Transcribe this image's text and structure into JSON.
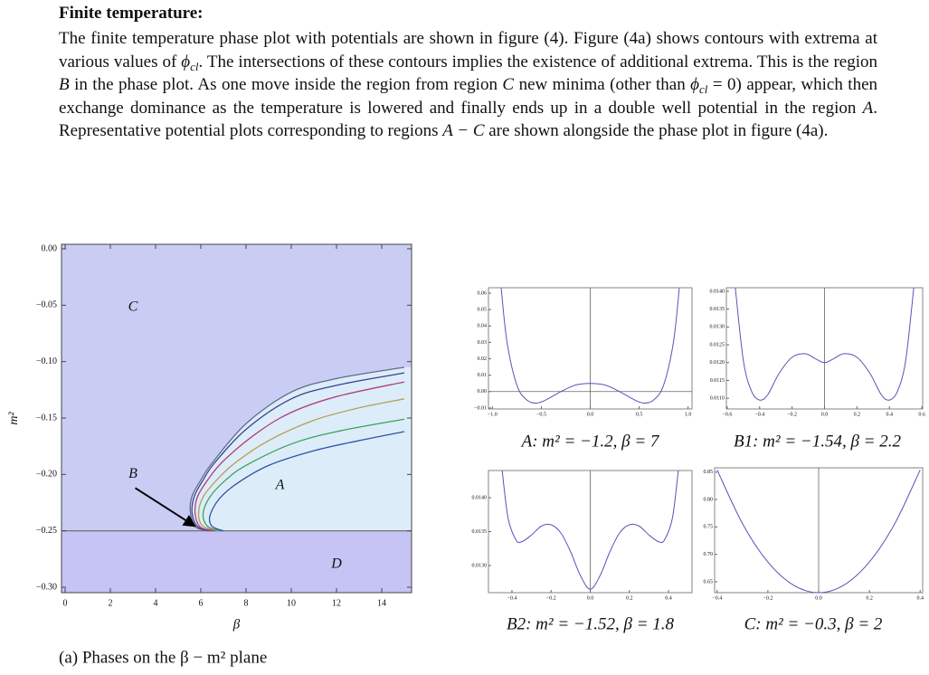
{
  "heading": "Finite temperature:",
  "paragraph": [
    "The finite temperature phase plot with potentials are shown in figure (4). Figure (4a) shows contours with extrema at various values of ",
    "ϕ",
    "cl",
    ". The intersections of these contours implies the existence of additional extrema. This is the region ",
    "B",
    " in the phase plot. As one move inside the region from region ",
    "C",
    " new minima (other than ",
    "ϕ",
    "cl",
    " = 0",
    ") appear, which then exchange dominance as the temperature is lowered and finally ends up in a double well potential in the region ",
    "A",
    ". Representative potential plots corresponding to regions ",
    "A − C",
    " are shown alongside the phase plot in figure (4a)."
  ],
  "chart_data": [
    {
      "type": "contour",
      "xlabel": "β",
      "ylabel": "m²",
      "caption": "(a) Phases on the β − m² plane",
      "xlim": [
        0,
        15
      ],
      "ylim": [
        -0.3,
        0
      ],
      "xticks": [
        0,
        2,
        4,
        6,
        8,
        10,
        12,
        14
      ],
      "yticks": [
        {
          "value": 0,
          "label": "0.00"
        },
        {
          "value": -0.05,
          "label": "−0.05"
        },
        {
          "value": -0.1,
          "label": "−0.10"
        },
        {
          "value": -0.15,
          "label": "−0.15"
        },
        {
          "value": -0.2,
          "label": "−0.20"
        },
        {
          "value": -0.25,
          "label": "−0.25"
        },
        {
          "value": -0.3,
          "label": "−0.30"
        }
      ],
      "boundary": -0.25,
      "annotations": [
        "C",
        "B",
        "A",
        "D"
      ],
      "series": [
        {
          "color": "#5f6a8c",
          "x": [
            6.5,
            5.8,
            5.55,
            5.6,
            6,
            6.5,
            8,
            10,
            12,
            15
          ],
          "values": [
            -0.25,
            -0.247,
            -0.235,
            -0.22,
            -0.205,
            -0.19,
            -0.155,
            -0.127,
            -0.115,
            -0.105
          ]
        },
        {
          "color": "#3c3f8c",
          "x": [
            6.6,
            5.9,
            5.62,
            5.7,
            6.1,
            6.6,
            8,
            10,
            12,
            15
          ],
          "values": [
            -0.25,
            -0.247,
            -0.235,
            -0.22,
            -0.205,
            -0.19,
            -0.16,
            -0.133,
            -0.121,
            -0.11
          ]
        },
        {
          "color": "#b0407a",
          "x": [
            6.7,
            6,
            5.75,
            5.85,
            6.3,
            7,
            8.5,
            10,
            12,
            15
          ],
          "values": [
            -0.25,
            -0.247,
            -0.235,
            -0.22,
            -0.205,
            -0.188,
            -0.163,
            -0.145,
            -0.131,
            -0.118
          ]
        },
        {
          "color": "#b89c58",
          "x": [
            6.8,
            6.1,
            5.9,
            6.1,
            6.7,
            7.5,
            9,
            11,
            13,
            15
          ],
          "values": [
            -0.25,
            -0.246,
            -0.235,
            -0.22,
            -0.205,
            -0.19,
            -0.17,
            -0.152,
            -0.141,
            -0.133
          ]
        },
        {
          "color": "#3fa05c",
          "x": [
            6.9,
            6.3,
            6.1,
            6.4,
            7.1,
            8,
            10,
            12,
            15
          ],
          "values": [
            -0.25,
            -0.246,
            -0.235,
            -0.22,
            -0.205,
            -0.192,
            -0.173,
            -0.162,
            -0.151
          ]
        },
        {
          "color": "#3452a4",
          "x": [
            7,
            6.5,
            6.4,
            6.8,
            7.6,
            9,
            11,
            13,
            15
          ],
          "values": [
            -0.25,
            -0.246,
            -0.237,
            -0.222,
            -0.208,
            -0.192,
            -0.179,
            -0.17,
            -0.162
          ]
        }
      ]
    },
    {
      "type": "line",
      "caption": "A: m² = −1.2, β = 7",
      "color": "#5555bb",
      "xlim": [
        -1.04,
        1.04
      ],
      "ylim": [
        -0.0106,
        0.0633
      ],
      "xticks": [
        {
          "value": -1,
          "label": "−1.0"
        },
        {
          "value": -0.5,
          "label": "−0.5"
        },
        {
          "value": 0,
          "label": "0.0"
        },
        0.5,
        {
          "value": 1,
          "label": "1.0"
        }
      ],
      "yticks": [
        {
          "value": -0.01,
          "label": "−0.01"
        },
        {
          "value": 0,
          "label": "0.00"
        },
        0.01,
        0.02,
        0.03,
        0.04,
        0.05,
        0.06
      ],
      "x": [
        -0.91,
        -0.85,
        -0.75,
        -0.65,
        -0.55,
        -0.45,
        -0.3,
        -0.15,
        0,
        0.15,
        0.3,
        0.45,
        0.55,
        0.65,
        0.75,
        0.85,
        0.91
      ],
      "values": [
        0.063,
        0.03,
        0.004,
        -0.005,
        -0.007,
        -0.005,
        0,
        0.004,
        0.005,
        0.004,
        0,
        -0.005,
        -0.007,
        -0.005,
        0.004,
        0.03,
        0.063
      ]
    },
    {
      "type": "line",
      "caption": "B1: m² = −1.54, β = 2.2",
      "color": "#5555bb",
      "xlim": [
        -0.605,
        0.605
      ],
      "ylim": [
        0.0107,
        0.0141
      ],
      "xticks": [
        {
          "value": -0.6,
          "label": "−0.6"
        },
        {
          "value": -0.4,
          "label": "−0.4"
        },
        {
          "value": -0.2,
          "label": "−0.2"
        },
        {
          "value": 0,
          "label": "0.0"
        },
        0.2,
        0.4,
        0.6
      ],
      "yticks": [
        {
          "value": 0.011,
          "label": "0.0110"
        },
        0.0115,
        {
          "value": 0.012,
          "label": "0.0120"
        },
        0.0125,
        {
          "value": 0.013,
          "label": "0.0130"
        },
        0.0135,
        {
          "value": 0.014,
          "label": "0.0140"
        }
      ],
      "x": [
        -0.55,
        -0.5,
        -0.45,
        -0.4,
        -0.35,
        -0.28,
        -0.2,
        -0.12,
        -0.06,
        0,
        0.06,
        0.12,
        0.2,
        0.28,
        0.35,
        0.4,
        0.45,
        0.5,
        0.55
      ],
      "values": [
        0.0141,
        0.01205,
        0.0112,
        0.01095,
        0.0111,
        0.0117,
        0.01215,
        0.01225,
        0.01212,
        0.012,
        0.01212,
        0.01225,
        0.01215,
        0.0117,
        0.0111,
        0.01095,
        0.0112,
        0.01205,
        0.0141
      ]
    },
    {
      "type": "line",
      "caption": "B2: m² = −1.52, β = 1.8",
      "color": "#5555bb",
      "xlim": [
        -0.52,
        0.52
      ],
      "ylim": [
        0.0126,
        0.0144
      ],
      "xticks": [
        {
          "value": -0.4,
          "label": "−0.4"
        },
        {
          "value": -0.2,
          "label": "−0.2"
        },
        {
          "value": 0,
          "label": "0.0"
        },
        0.2,
        0.4
      ],
      "yticks": [
        {
          "value": 0.013,
          "label": "0.0130"
        },
        0.0135,
        {
          "value": 0.014,
          "label": "0.0140"
        }
      ],
      "x": [
        -0.45,
        -0.42,
        -0.38,
        -0.35,
        -0.3,
        -0.25,
        -0.2,
        -0.15,
        -0.1,
        -0.05,
        0,
        0.05,
        0.1,
        0.15,
        0.2,
        0.25,
        0.3,
        0.35,
        0.38,
        0.42,
        0.45
      ],
      "values": [
        0.0144,
        0.0137,
        0.01338,
        0.01335,
        0.01345,
        0.01358,
        0.0136,
        0.01348,
        0.0132,
        0.01285,
        0.01265,
        0.01285,
        0.0132,
        0.01348,
        0.0136,
        0.01358,
        0.01345,
        0.01335,
        0.01338,
        0.0137,
        0.0144
      ]
    },
    {
      "type": "line",
      "caption": "C: m² = −0.3, β = 2",
      "color": "#5555bb",
      "xlim": [
        -0.41,
        0.41
      ],
      "ylim": [
        0.63,
        0.858
      ],
      "xticks": [
        {
          "value": -0.4,
          "label": "−0.4"
        },
        {
          "value": -0.2,
          "label": "−0.2"
        },
        {
          "value": 0,
          "label": "0.0"
        },
        0.2,
        0.4
      ],
      "yticks": [
        0.65,
        {
          "value": 0.7,
          "label": "0.70"
        },
        0.75,
        {
          "value": 0.8,
          "label": "0.80"
        },
        0.85
      ],
      "x": [
        -0.4,
        -0.3,
        -0.2,
        -0.1,
        0,
        0.1,
        0.2,
        0.3,
        0.4
      ],
      "values": [
        0.854,
        0.756,
        0.686,
        0.644,
        0.63,
        0.644,
        0.686,
        0.756,
        0.854
      ]
    }
  ]
}
